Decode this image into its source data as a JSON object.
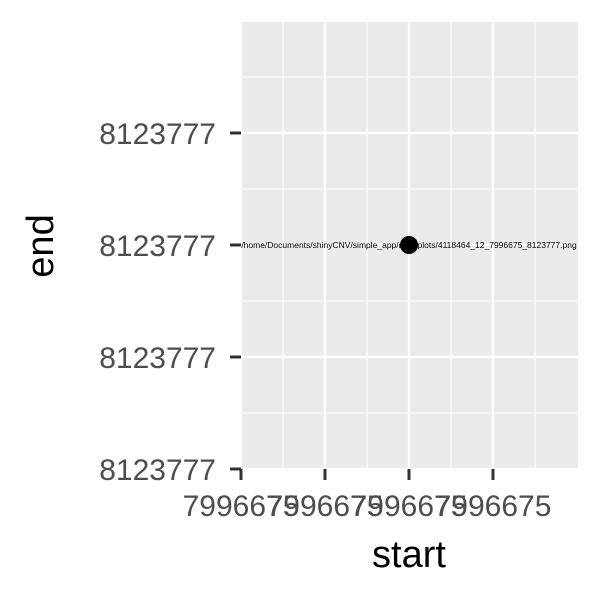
{
  "chart_data": {
    "type": "scatter",
    "xlabel": "start",
    "ylabel": "end",
    "x_tick_labels": [
      "7996675",
      "7996675",
      "7996675",
      "7996675"
    ],
    "y_tick_labels": [
      "8123777",
      "8123777",
      "8123777",
      "8123777"
    ],
    "points": [
      {
        "x": 7996675,
        "y": 8123777,
        "label": "/home/Documents/shinyCNV/simple_app/data/plots/4118464_12_7996675_8123777.png"
      }
    ],
    "grid": true,
    "legend": "none",
    "colors": {
      "panel": "#ebebeb",
      "grid": "#ffffff",
      "point": "#000000",
      "tick": "#333333",
      "tick_label": "#4d4d4d"
    }
  }
}
